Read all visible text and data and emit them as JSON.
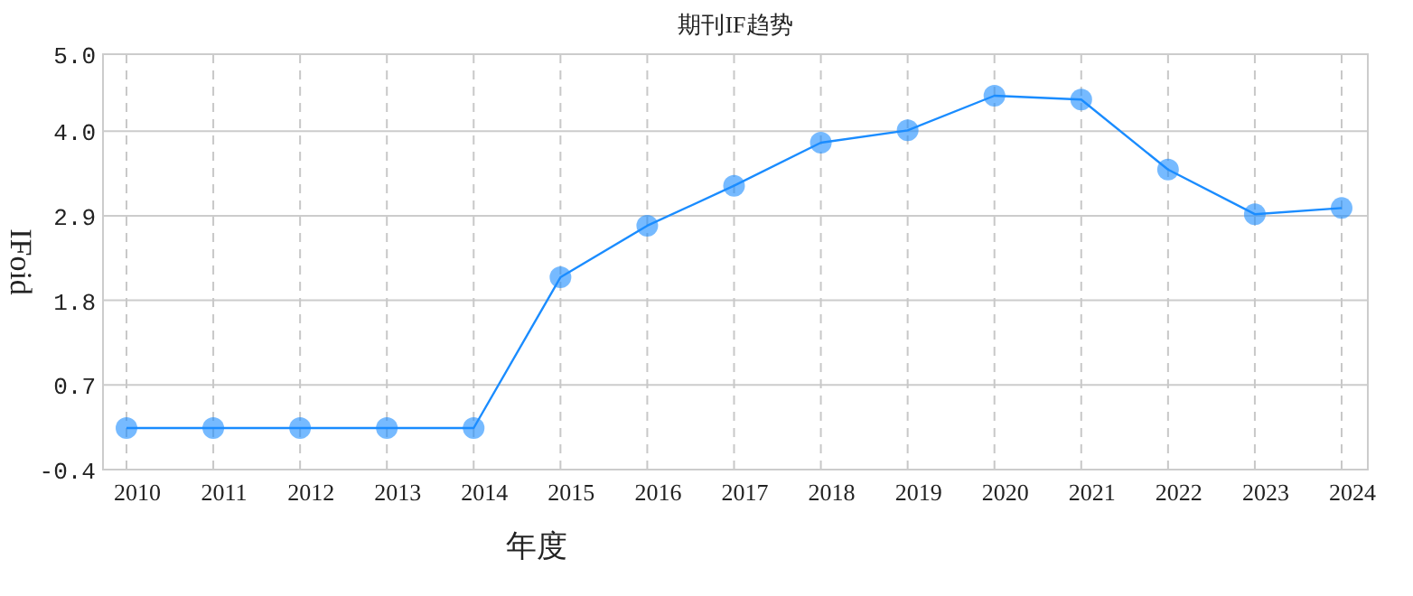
{
  "chart_data": {
    "type": "line",
    "title": "期刊IF趋势",
    "xlabel": "年度",
    "ylabel": "IFoid",
    "categories": [
      "2010",
      "2011",
      "2012",
      "2013",
      "2014",
      "2015",
      "2016",
      "2017",
      "2018",
      "2019",
      "2020",
      "2021",
      "2022",
      "2023",
      "2024"
    ],
    "series": [
      {
        "color": "#1a8cff",
        "values": [
          0.14,
          0.14,
          0.14,
          0.14,
          0.14,
          2.1,
          2.77,
          3.29,
          3.85,
          4.01,
          4.46,
          4.41,
          3.5,
          2.92,
          3.0
        ]
      }
    ],
    "ylim": [
      -0.4,
      5.0
    ],
    "yticks": [
      {
        "value": -0.4,
        "label": "-0.4"
      },
      {
        "value": 0.7,
        "label": "0.7"
      },
      {
        "value": 1.8,
        "label": "1.8"
      },
      {
        "value": 2.9,
        "label": "2.9"
      },
      {
        "value": 4.0,
        "label": "4.0"
      },
      {
        "value": 5.0,
        "label": "5.0"
      }
    ],
    "grid": true,
    "marker": "circle",
    "line_style": "solid"
  }
}
